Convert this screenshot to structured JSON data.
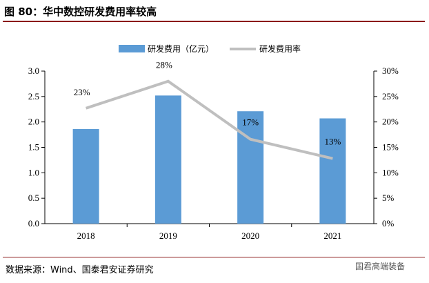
{
  "title": "图 80：华中数控研发费用率较高",
  "source": "数据来源：Wind、国泰君安证券研究",
  "watermark": "国君高端装备",
  "chart_data": {
    "type": "bar+line",
    "categories": [
      "2018",
      "2019",
      "2020",
      "2021"
    ],
    "series": [
      {
        "name": "研发费用（亿元）",
        "type": "bar",
        "axis": "left",
        "color": "#5b9bd5",
        "values": [
          1.86,
          2.52,
          2.21,
          2.07
        ]
      },
      {
        "name": "研发费用率",
        "type": "line",
        "axis": "right",
        "color": "#bfbfbf",
        "values": [
          22.7,
          28.0,
          16.6,
          12.8
        ],
        "labels": [
          "23%",
          "28%",
          "17%",
          "13%"
        ]
      }
    ],
    "ylim": [
      0,
      3.0
    ],
    "yticks": [
      "0.0",
      "0.5",
      "1.0",
      "1.5",
      "2.0",
      "2.5",
      "3.0"
    ],
    "y2lim": [
      0,
      30
    ],
    "y2ticks": [
      "0%",
      "5%",
      "10%",
      "15%",
      "20%",
      "25%",
      "30%"
    ],
    "legend": "top",
    "grid": false
  }
}
